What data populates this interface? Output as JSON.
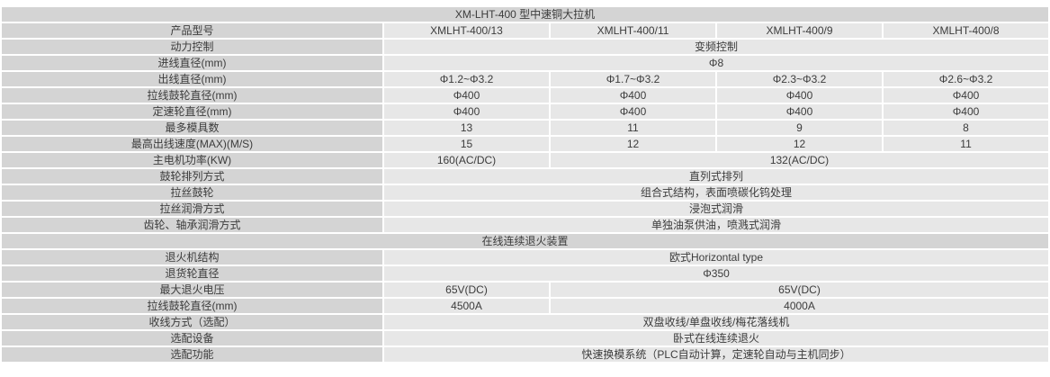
{
  "colors": {
    "label_bg": "#d4d4d4",
    "value_bg": "#e7e7e7",
    "gap": "#ffffff",
    "text": "#3c3c3c"
  },
  "table": {
    "title": "XM-LHT-400 型中速铜大拉机",
    "rows": [
      {
        "label": "产品型号",
        "cells": [
          {
            "text": "XMLHT-400/13",
            "span": 1
          },
          {
            "text": "XMLHT-400/11",
            "span": 1
          },
          {
            "text": "XMLHT-400/9",
            "span": 1
          },
          {
            "text": "XMLHT-400/8",
            "span": 1
          }
        ]
      },
      {
        "label": "动力控制",
        "cells": [
          {
            "text": "变频控制",
            "span": 4
          }
        ]
      },
      {
        "label": "进线直径(mm)",
        "cells": [
          {
            "text": "Φ8",
            "span": 4
          }
        ]
      },
      {
        "label": "出线直径(mm)",
        "cells": [
          {
            "text": "Φ1.2~Φ3.2",
            "span": 1
          },
          {
            "text": "Φ1.7~Φ3.2",
            "span": 1
          },
          {
            "text": "Φ2.3~Φ3.2",
            "span": 1
          },
          {
            "text": "Φ2.6~Φ3.2",
            "span": 1
          }
        ]
      },
      {
        "label": "拉线鼓轮直径(mm)",
        "cells": [
          {
            "text": "Φ400",
            "span": 1
          },
          {
            "text": "Φ400",
            "span": 1
          },
          {
            "text": "Φ400",
            "span": 1
          },
          {
            "text": "Φ400",
            "span": 1
          }
        ]
      },
      {
        "label": "定速轮直径(mm)",
        "cells": [
          {
            "text": "Φ400",
            "span": 1
          },
          {
            "text": "Φ400",
            "span": 1
          },
          {
            "text": "Φ400",
            "span": 1
          },
          {
            "text": "Φ400",
            "span": 1
          }
        ]
      },
      {
        "label": "最多模具数",
        "cells": [
          {
            "text": "13",
            "span": 1
          },
          {
            "text": "11",
            "span": 1
          },
          {
            "text": "9",
            "span": 1
          },
          {
            "text": "8",
            "span": 1
          }
        ]
      },
      {
        "label": "最高出线速度(MAX)(M/S)",
        "cells": [
          {
            "text": "15",
            "span": 1
          },
          {
            "text": "12",
            "span": 1
          },
          {
            "text": "12",
            "span": 1
          },
          {
            "text": "11",
            "span": 1
          }
        ]
      },
      {
        "label": "主电机功率(KW)",
        "cells": [
          {
            "text": "160(AC/DC)",
            "span": 1
          },
          {
            "text": "132(AC/DC)",
            "span": 3
          }
        ]
      },
      {
        "label": "鼓轮排列方式",
        "cells": [
          {
            "text": "直列式排列",
            "span": 4
          }
        ]
      },
      {
        "label": "拉丝鼓轮",
        "cells": [
          {
            "text": "组合式结构，表面喷碳化钨处理",
            "span": 4
          }
        ]
      },
      {
        "label": "拉丝润滑方式",
        "cells": [
          {
            "text": "浸泡式润滑",
            "span": 4
          }
        ]
      },
      {
        "label": "齿轮、轴承润滑方式",
        "cells": [
          {
            "text": "单独油泵供油，喷溅式润滑",
            "span": 4
          }
        ]
      },
      {
        "section": "在线连续退火装置"
      },
      {
        "label": "退火机结构",
        "cells": [
          {
            "text": "欧式Horizontal type",
            "span": 4
          }
        ]
      },
      {
        "label": "退货轮直径",
        "cells": [
          {
            "text": "Φ350",
            "span": 4
          }
        ]
      },
      {
        "label": "最大退火电压",
        "cells": [
          {
            "text": "65V(DC)",
            "span": 1
          },
          {
            "text": "65V(DC)",
            "span": 3
          }
        ]
      },
      {
        "label": "拉线鼓轮直径(mm)",
        "cells": [
          {
            "text": "4500A",
            "span": 1
          },
          {
            "text": "4000A",
            "span": 3
          }
        ]
      },
      {
        "label": "收线方式（选配）",
        "cells": [
          {
            "text": "双盘收线/单盘收线/梅花落线机",
            "span": 4
          }
        ]
      },
      {
        "label": "选配设备",
        "cells": [
          {
            "text": "卧式在线连续退火",
            "span": 4
          }
        ]
      },
      {
        "label": "选配功能",
        "cells": [
          {
            "text": "快速换模系统（PLC自动计算，定速轮自动与主机同步）",
            "span": 4
          }
        ]
      }
    ]
  }
}
